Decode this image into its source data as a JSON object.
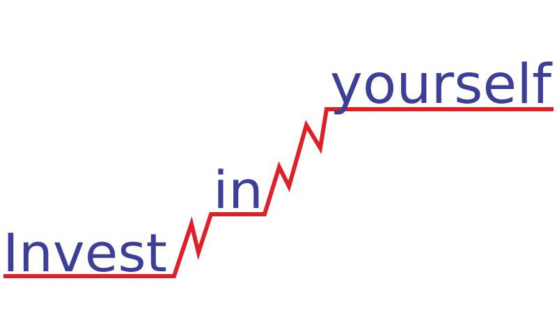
{
  "words": {
    "w1": "Invest",
    "w2": "in",
    "w3": "yourself"
  },
  "colors": {
    "text": "#3b3f98",
    "line": "#e02026",
    "background": "#ffffff"
  }
}
